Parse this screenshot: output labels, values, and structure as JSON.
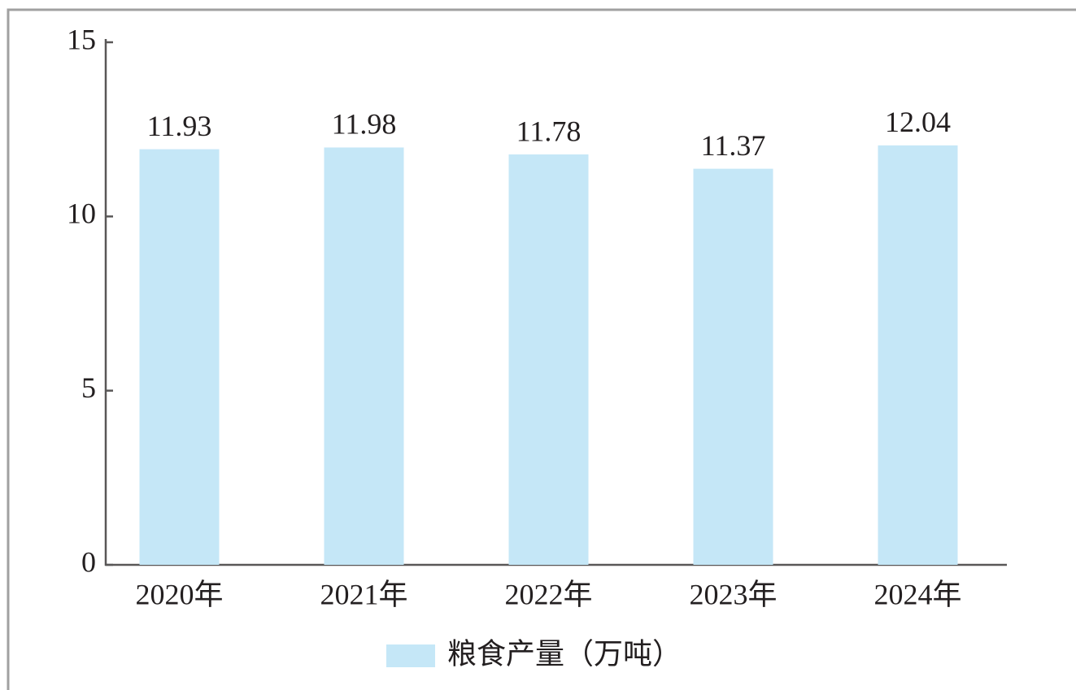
{
  "chart_data": {
    "type": "bar",
    "legend": "粮食产量（万吨）",
    "categories": [
      "2020年",
      "2021年",
      "2022年",
      "2023年",
      "2024年"
    ],
    "values": [
      11.93,
      11.98,
      11.78,
      11.37,
      12.04
    ],
    "color": "#c5e7f7",
    "ylim": [
      0,
      15
    ],
    "yticks": [
      0,
      5,
      10,
      15
    ],
    "grid": false
  }
}
